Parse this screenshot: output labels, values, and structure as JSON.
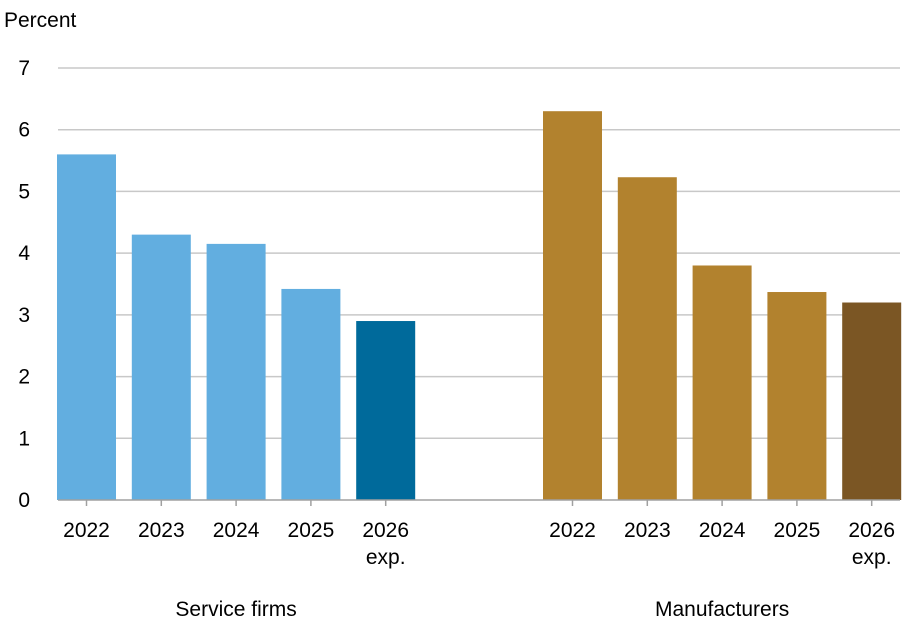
{
  "chart_data": {
    "type": "bar",
    "ylabel": "Percent",
    "ylim": [
      0,
      7
    ],
    "yticks": [
      0,
      1,
      2,
      3,
      4,
      5,
      6,
      7
    ],
    "grid": true,
    "groups": [
      {
        "name": "Service firms",
        "categories": [
          [
            "2022"
          ],
          [
            "2023"
          ],
          [
            "2024"
          ],
          [
            "2025"
          ],
          [
            "2026",
            "exp."
          ]
        ],
        "values": [
          5.6,
          4.3,
          4.15,
          3.42,
          2.9
        ],
        "colors": [
          "#62aee0",
          "#62aee0",
          "#62aee0",
          "#62aee0",
          "#006a9b"
        ]
      },
      {
        "name": "Manufacturers",
        "categories": [
          [
            "2022"
          ],
          [
            "2023"
          ],
          [
            "2024"
          ],
          [
            "2025"
          ],
          [
            "2026",
            "exp."
          ]
        ],
        "values": [
          6.3,
          5.23,
          3.8,
          3.37,
          3.2
        ],
        "colors": [
          "#b2822e",
          "#b2822e",
          "#b2822e",
          "#b2822e",
          "#7b5624"
        ]
      }
    ]
  }
}
